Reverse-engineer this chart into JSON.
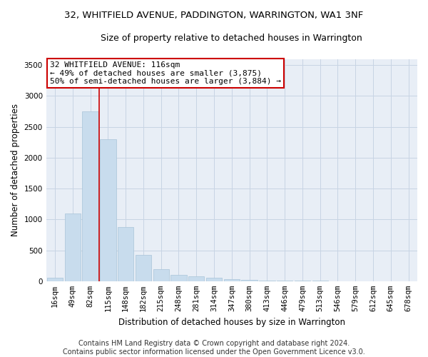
{
  "title_line1": "32, WHITFIELD AVENUE, PADDINGTON, WARRINGTON, WA1 3NF",
  "title_line2": "Size of property relative to detached houses in Warrington",
  "xlabel": "Distribution of detached houses by size in Warrington",
  "ylabel": "Number of detached properties",
  "categories": [
    "16sqm",
    "49sqm",
    "82sqm",
    "115sqm",
    "148sqm",
    "182sqm",
    "215sqm",
    "248sqm",
    "281sqm",
    "314sqm",
    "347sqm",
    "380sqm",
    "413sqm",
    "446sqm",
    "479sqm",
    "513sqm",
    "546sqm",
    "579sqm",
    "612sqm",
    "645sqm",
    "678sqm"
  ],
  "values": [
    50,
    1100,
    2750,
    2300,
    880,
    420,
    200,
    105,
    80,
    55,
    30,
    20,
    15,
    10,
    8,
    5,
    3,
    2,
    1,
    1,
    1
  ],
  "bar_color": "#c8dced",
  "bar_edge_color": "#a8c4d8",
  "vline_x_index": 2,
  "vline_color": "#cc0000",
  "annotation_text": "32 WHITFIELD AVENUE: 116sqm\n← 49% of detached houses are smaller (3,875)\n50% of semi-detached houses are larger (3,884) →",
  "annotation_box_color": "#ffffff",
  "annotation_box_edge": "#cc0000",
  "ylim": [
    0,
    3600
  ],
  "yticks": [
    0,
    500,
    1000,
    1500,
    2000,
    2500,
    3000,
    3500
  ],
  "grid_color": "#c8d4e4",
  "bg_color": "#e8eef6",
  "footer_line1": "Contains HM Land Registry data © Crown copyright and database right 2024.",
  "footer_line2": "Contains public sector information licensed under the Open Government Licence v3.0.",
  "title_fontsize": 9.5,
  "subtitle_fontsize": 9,
  "axis_label_fontsize": 8.5,
  "tick_fontsize": 7.5,
  "annotation_fontsize": 8,
  "footer_fontsize": 7
}
